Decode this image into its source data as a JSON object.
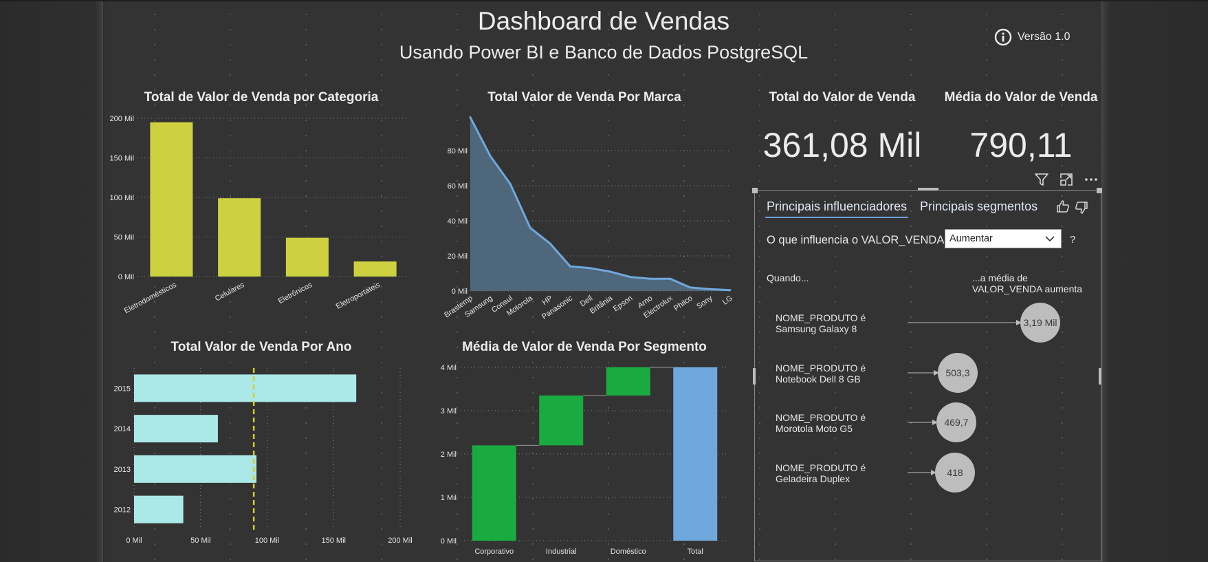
{
  "header": {
    "title": "Dashboard de Vendas",
    "subtitle": "Usando Power BI e Banco de Dados PostgreSQL",
    "version_label": "Versão 1.0"
  },
  "cards": {
    "total": {
      "title": "Total do Valor de Venda",
      "value": "361,08 Mil"
    },
    "average": {
      "title": "Média do Valor de Venda",
      "value": "790,11"
    }
  },
  "chart_data": [
    {
      "id": "categoria",
      "type": "bar",
      "title": "Total de Valor de Venda por Categoria",
      "categories": [
        "Eletrodomésticos",
        "Celulares",
        "Eletrônicos",
        "Eletroportáteis"
      ],
      "values": [
        195,
        99,
        49,
        19
      ],
      "ylim": [
        0,
        200
      ],
      "yticks": [
        "0 Mil",
        "50 Mil",
        "100 Mil",
        "150 Mil",
        "200 Mil"
      ],
      "color": "#cdd13f",
      "grid": true
    },
    {
      "id": "marca",
      "type": "area",
      "title": "Total Valor de Venda Por Marca",
      "categories": [
        "Brastemp",
        "Samsung",
        "Consul",
        "Motorola",
        "HP",
        "Panasonic",
        "Dell",
        "Britânia",
        "Epson",
        "Arno",
        "Electrolux",
        "Philco",
        "Sony",
        "LG"
      ],
      "values": [
        99,
        77,
        61,
        36,
        27,
        14,
        13,
        11,
        8,
        7,
        7,
        2,
        1,
        0.5
      ],
      "ylim": [
        0,
        100
      ],
      "yticks": [
        "0 Mil",
        "20 Mil",
        "40 Mil",
        "60 Mil",
        "80 Mil"
      ],
      "color": "#6fa8dc",
      "grid": true
    },
    {
      "id": "ano",
      "type": "bar",
      "orientation": "horizontal",
      "title": "Total Valor de Venda Por Ano",
      "categories": [
        "2015",
        "2014",
        "2013",
        "2012"
      ],
      "values": [
        167,
        63,
        92,
        37
      ],
      "xlim": [
        0,
        200
      ],
      "xticks": [
        "0 Mil",
        "50 Mil",
        "100 Mil",
        "150 Mil",
        "200 Mil"
      ],
      "reference_line": 90,
      "color": "#abe9e8",
      "reference_color": "#d4d11f",
      "grid": true
    },
    {
      "id": "segmento",
      "type": "bar",
      "subtype": "waterfall",
      "title": "Média de Valor de Venda Por Segmento",
      "categories": [
        "Corporativo",
        "Industrial",
        "Doméstico",
        "Total"
      ],
      "values": [
        2.2,
        1.15,
        0.65,
        4.0
      ],
      "ylim": [
        0,
        4
      ],
      "yticks": [
        "0 Mil",
        "1 Mil",
        "2 Mil",
        "3 Mil",
        "4 Mil"
      ],
      "increase_color": "#1aab40",
      "total_color": "#6fa8dc",
      "grid": true
    }
  ],
  "key_influencers": {
    "tabs": [
      "Principais influenciadores",
      "Principais segmentos"
    ],
    "active_tab": 0,
    "question": "O que influencia o VALOR_VENDA a",
    "select_value": "Aumentar",
    "qmark": "?",
    "when_label": "Quando...",
    "avg_label_1": "...a média de",
    "avg_label_2": "VALOR_VENDA aumenta",
    "items": [
      {
        "line1": "NOME_PRODUTO é",
        "line2": "Samsung Galaxy 8",
        "value": "3,19 Mil"
      },
      {
        "line1": "NOME_PRODUTO é",
        "line2": "Notebook Dell 8 GB",
        "value": "503,3"
      },
      {
        "line1": "NOME_PRODUTO é",
        "line2": "Morotola Moto G5",
        "value": "469,7"
      },
      {
        "line1": "NOME_PRODUTO é",
        "line2": "Geladeira Duplex",
        "value": "418"
      }
    ]
  },
  "icons": {
    "info": "info-icon",
    "filter": "filter-icon",
    "focus": "focus-mode-icon",
    "more": "more-options-icon",
    "like": "thumbs-up-icon",
    "dislike": "thumbs-down-icon",
    "chevron": "chevron-down-icon"
  }
}
